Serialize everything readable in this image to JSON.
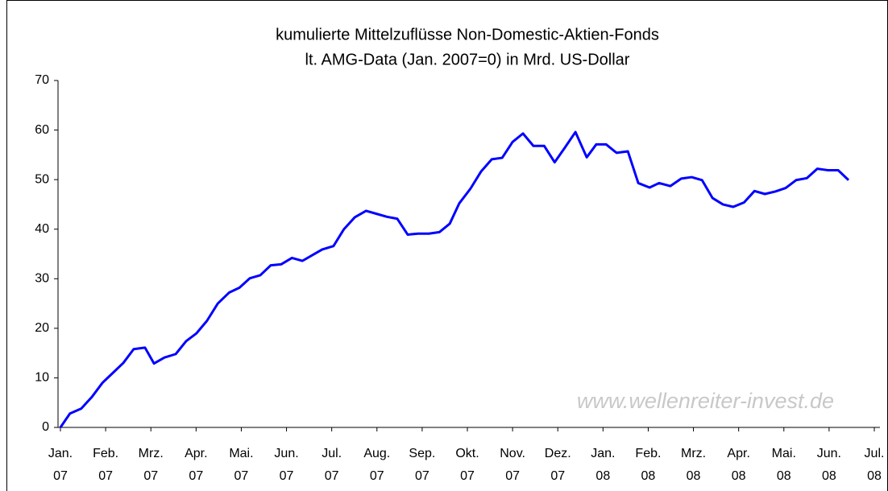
{
  "chart_data": {
    "type": "line",
    "title": "kumulierte Mittelzuflüsse Non-Domestic-Aktien-Fonds",
    "subtitle": "lt. AMG-Data (Jan. 2007=0) in Mrd. US-Dollar",
    "annotation": "www.wellenreiter-invest.de",
    "xlim": [
      0,
      18
    ],
    "xticks": [
      {
        "value": 0,
        "label": "Jan. 07"
      },
      {
        "value": 1,
        "label": "Feb. 07"
      },
      {
        "value": 2,
        "label": "Mrz. 07"
      },
      {
        "value": 3,
        "label": "Apr. 07"
      },
      {
        "value": 4,
        "label": "Mai. 07"
      },
      {
        "value": 5,
        "label": "Jun. 07"
      },
      {
        "value": 6,
        "label": "Jul. 07"
      },
      {
        "value": 7,
        "label": "Aug. 07"
      },
      {
        "value": 8,
        "label": "Sep. 07"
      },
      {
        "value": 9,
        "label": "Okt. 07"
      },
      {
        "value": 10,
        "label": "Nov. 07"
      },
      {
        "value": 11,
        "label": "Dez. 07"
      },
      {
        "value": 12,
        "label": "Jan. 08"
      },
      {
        "value": 13,
        "label": "Feb. 08"
      },
      {
        "value": 14,
        "label": "Mrz. 08"
      },
      {
        "value": 15,
        "label": "Apr. 08"
      },
      {
        "value": 16,
        "label": "Mai. 08"
      },
      {
        "value": 17,
        "label": "Jun. 08"
      },
      {
        "value": 18,
        "label": "Jul. 08"
      }
    ],
    "ylim": [
      0,
      70
    ],
    "yticks": [
      0,
      10,
      20,
      30,
      40,
      50,
      60,
      70
    ],
    "grid": false,
    "x": [
      0,
      0.21,
      0.46,
      0.7,
      0.93,
      1.16,
      1.39,
      1.62,
      1.87,
      2.07,
      2.3,
      2.55,
      2.78,
      3.01,
      3.24,
      3.48,
      3.73,
      3.96,
      4.19,
      4.42,
      4.65,
      4.88,
      5.12,
      5.35,
      5.58,
      5.79,
      6.04,
      6.27,
      6.51,
      6.76,
      6.99,
      7.22,
      7.45,
      7.68,
      7.91,
      8.15,
      8.38,
      8.61,
      8.82,
      9.07,
      9.3,
      9.54,
      9.77,
      10,
      10.23,
      10.46,
      10.7,
      10.93,
      11.16,
      11.39,
      11.64,
      11.85,
      12.07,
      12.3,
      12.55,
      12.78,
      13.03,
      13.24,
      13.49,
      13.73,
      13.96,
      14.19,
      14.42,
      14.65,
      14.88,
      15.12,
      15.35,
      15.58,
      15.81,
      16.04,
      16.27,
      16.51,
      16.74,
      16.97,
      17.2,
      17.43
    ],
    "series": [
      {
        "name": "Mittelzuflüsse",
        "color": "#0000ff",
        "values": [
          0,
          2.8,
          3.8,
          6.2,
          9,
          11,
          13,
          15.8,
          16.1,
          12.9,
          14.1,
          14.8,
          17.4,
          19,
          21.5,
          25,
          27.2,
          28.2,
          30.1,
          30.7,
          32.7,
          32.9,
          34.2,
          33.6,
          34.8,
          35.9,
          36.6,
          40,
          42.4,
          43.7,
          43.1,
          42.5,
          42.1,
          38.9,
          39.1,
          39.1,
          39.4,
          41.1,
          45.2,
          48.2,
          51.6,
          54.1,
          54.4,
          57.6,
          59.3,
          56.8,
          56.8,
          53.5,
          56.5,
          59.6,
          54.5,
          57.1,
          57.1,
          55.4,
          55.7,
          49.3,
          48.4,
          49.3,
          48.7,
          50.2,
          50.5,
          49.9,
          46.3,
          45,
          44.5,
          45.4,
          47.7,
          47.1,
          47.6,
          48.3,
          49.9,
          50.3,
          52.2,
          51.9,
          51.9,
          49.9
        ]
      }
    ]
  }
}
